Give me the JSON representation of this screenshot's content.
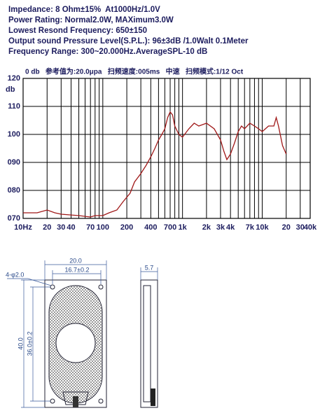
{
  "specs": [
    "Impedance: 8 Ohm±15%  At1000Hz/1.0V",
    "Power Rating: Normal2.0W, MAXimum3.0W",
    "Lowest Resond Frequency: 650±150",
    "Output sound Pressure Level(S.P.L.): 96±3dB /1.0Walt 0.1Meter",
    "Frequency Range: 300~20.000Hz.AverageSPL-10 dB"
  ],
  "chart_data": {
    "type": "line",
    "subtitle": "0 db   参考值为:20.0μpa   扫频速度:005ms   中速   扫频模式:1/12 Oct",
    "ylabel": "db",
    "x": [
      10,
      15,
      20,
      25,
      30,
      50,
      70,
      80,
      100,
      120,
      150,
      180,
      220,
      250,
      300,
      350,
      400,
      450,
      500,
      550,
      600,
      650,
      700,
      750,
      800,
      900,
      1000,
      1200,
      1400,
      1600,
      2000,
      2500,
      3000,
      3300,
      3600,
      4000,
      4500,
      5000,
      5500,
      6000,
      7000,
      8000,
      9000,
      10000,
      12000,
      14000,
      15000,
      16000,
      18000,
      20000
    ],
    "values": [
      72,
      72,
      73,
      72,
      71.5,
      71,
      70.5,
      71,
      71,
      72,
      73,
      76,
      79,
      83,
      86,
      89,
      92,
      95,
      98,
      100,
      102,
      106,
      108,
      107,
      103,
      100,
      99,
      102,
      104,
      103,
      104,
      102,
      98,
      94,
      91,
      93,
      97,
      101,
      103,
      102,
      104,
      103,
      102,
      101,
      103,
      103,
      106,
      103,
      96,
      93
    ],
    "color": "#a01818",
    "xscale": "log",
    "grid": true,
    "xlim": [
      10,
      40000
    ],
    "ylim": [
      70,
      120
    ],
    "xticks": [
      {
        "value": 10,
        "label": "10Hz"
      },
      20,
      30,
      40,
      {
        "value": 50,
        "label": null
      },
      {
        "value": 60,
        "label": null
      },
      70,
      {
        "value": 80,
        "label": null
      },
      {
        "value": 90,
        "label": null
      },
      100,
      200,
      {
        "value": 300,
        "label": null
      },
      400,
      {
        "value": 500,
        "label": null
      },
      {
        "value": 600,
        "label": null
      },
      700,
      {
        "value": 800,
        "label": null
      },
      {
        "value": 900,
        "label": null
      },
      {
        "value": 1000,
        "label": "1k"
      },
      {
        "value": 2000,
        "label": "2k"
      },
      {
        "value": 3000,
        "label": "3k"
      },
      {
        "value": 4000,
        "label": "4k"
      },
      {
        "value": 5000,
        "label": null
      },
      {
        "value": 6000,
        "label": null
      },
      {
        "value": 7000,
        "label": "7k"
      },
      {
        "value": 8000,
        "label": null
      },
      {
        "value": 9000,
        "label": null
      },
      {
        "value": 10000,
        "label": "10k"
      },
      {
        "value": 20000,
        "label": "20"
      },
      {
        "value": 30000,
        "label": "30"
      },
      {
        "value": 40000,
        "label": "40k"
      }
    ],
    "yticks": [
      {
        "value": 70,
        "label": "070"
      },
      {
        "value": 80,
        "label": "080"
      },
      {
        "value": 90,
        "label": "090"
      },
      100,
      110,
      120
    ]
  },
  "drawing": {
    "width": "20.0",
    "hole_pitch": "16.7±0.2",
    "holes": "4-φ2.0",
    "height": "40.0",
    "hole_height": "36.0±0.2",
    "depth": "5.7"
  }
}
